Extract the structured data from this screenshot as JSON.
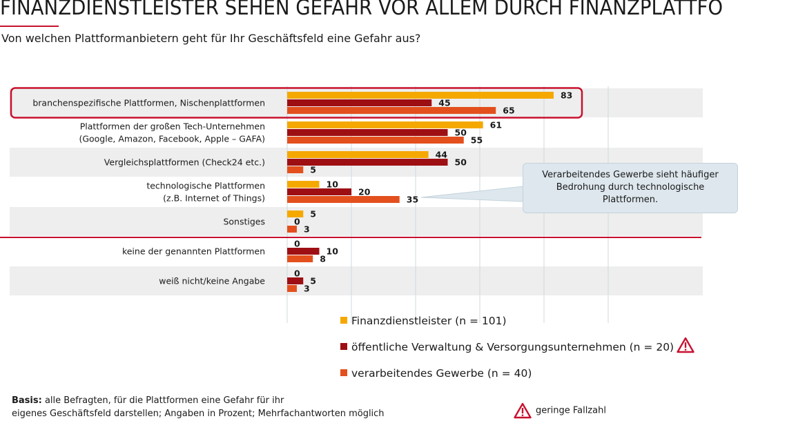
{
  "header": {
    "title": "FINANZDIENSTLEISTER SEHEN GEFAHR VOR ALLEM DURCH FINANZPLATTFORMEN",
    "subtitle": "Von welchen Plattformanbietern geht für Ihr Geschäftsfeld eine Gefahr aus?"
  },
  "colors": {
    "finanz": "#f5a800",
    "verwaltung": "#9e0f14",
    "gewerbe": "#e3501d",
    "highlight": "#c8102e",
    "row_band": "#eeeeee",
    "grid": "#cfd8dd"
  },
  "chart_data": {
    "type": "bar",
    "orientation": "horizontal",
    "categories": [
      [
        "branchenspezifische Plattformen, Nischenplattformen"
      ],
      [
        "Plattformen der großen Tech-Unternehmen",
        "(Google, Amazon, Facebook, Apple – GAFA)"
      ],
      [
        "Vergleichsplattformen (Check24 etc.)"
      ],
      [
        "technologische Plattformen",
        "(z.B. Internet of Things)"
      ],
      [
        "Sonstiges"
      ],
      [
        "keine der genannten Plattformen"
      ],
      [
        "weiß nicht/keine Angabe"
      ]
    ],
    "series": [
      {
        "name": "Finanzdienstleister (n = 101)",
        "color": "#f5a800",
        "values": [
          83,
          61,
          44,
          10,
          5,
          0,
          0
        ]
      },
      {
        "name": "öffentliche Verwaltung & Versorgungsunternehmen (n = 20)",
        "color": "#9e0f14",
        "values": [
          45,
          50,
          50,
          20,
          0,
          10,
          5
        ]
      },
      {
        "name": "verarbeitendes Gewerbe (n = 40)",
        "color": "#e3501d",
        "values": [
          65,
          55,
          5,
          35,
          3,
          8,
          3
        ]
      }
    ],
    "xlim": [
      0,
      100
    ],
    "grid": true,
    "legend_placement": "bottom",
    "highlighted_category_index": 0
  },
  "callout": {
    "text": "Verarbeitendes Gewerbe sieht häufiger Bedrohung durch technologische Plattformen."
  },
  "footer": {
    "basis_label": "Basis:",
    "basis_line1": " alle Befragten, für die Plattformen eine Gefahr für ihr",
    "basis_line2": "eigenes Geschäftsfeld darstellen; Angaben in Prozent; Mehrfachantworten möglich",
    "small_sample_note": "geringe Fallzahl"
  }
}
